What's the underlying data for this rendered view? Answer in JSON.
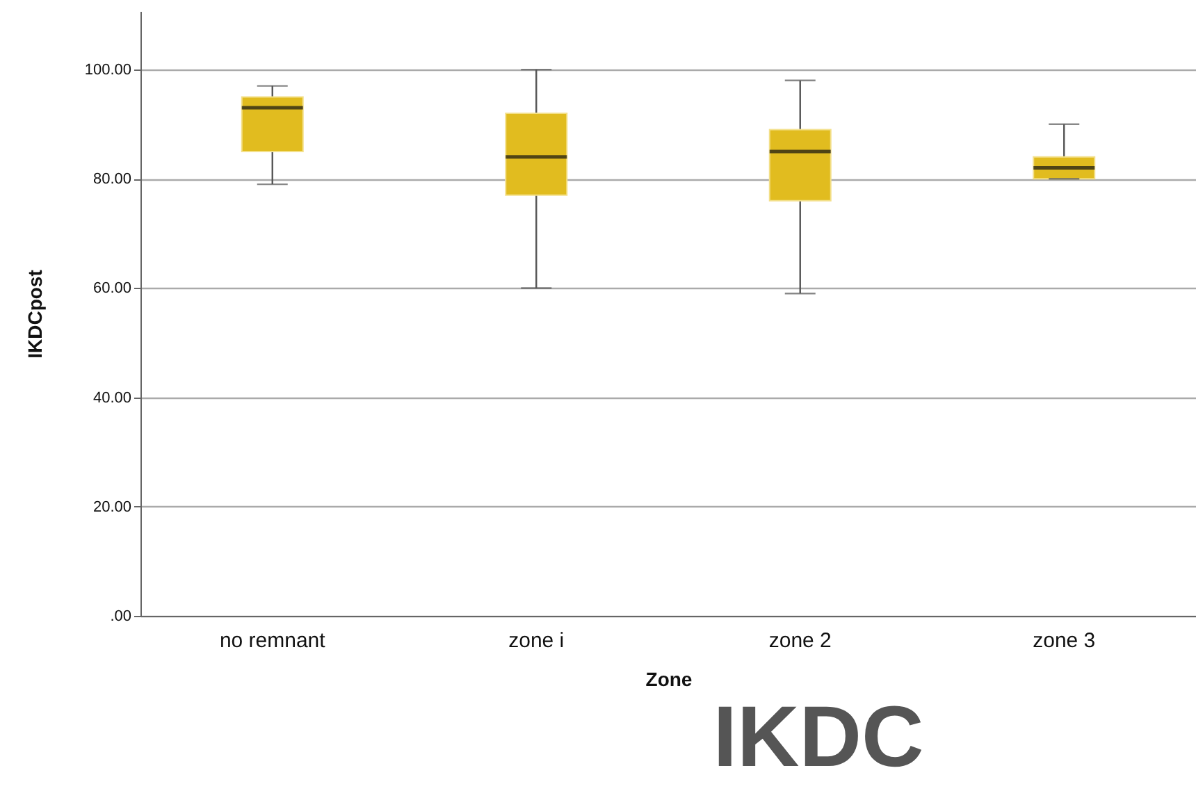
{
  "chart_data": {
    "type": "box",
    "title": "IKDC",
    "xlabel": "Zone",
    "ylabel": "IKDCpost",
    "categories": [
      "no remnant",
      "zone i",
      "zone 2",
      "zone 3"
    ],
    "series": [
      {
        "color": "#e1bc1f",
        "boxes": [
          {
            "low": 79,
            "q1": 85,
            "median": 93,
            "q3": 95,
            "high": 97
          },
          {
            "low": 60,
            "q1": 77,
            "median": 84,
            "q3": 92,
            "high": 100
          },
          {
            "low": 59,
            "q1": 76,
            "median": 85,
            "q3": 89,
            "high": 98
          },
          {
            "low": 80,
            "q1": 80,
            "median": 82,
            "q3": 84,
            "high": 90
          }
        ]
      }
    ],
    "ylim": [
      0,
      110.7
    ],
    "yticks": [
      {
        "value": 0,
        "label": ".00"
      },
      {
        "value": 20,
        "label": "20.00"
      },
      {
        "value": 40,
        "label": "40.00"
      },
      {
        "value": 60,
        "label": "60.00"
      },
      {
        "value": 80,
        "label": "80.00"
      },
      {
        "value": 100,
        "label": "100.00"
      }
    ],
    "grid": "y"
  }
}
